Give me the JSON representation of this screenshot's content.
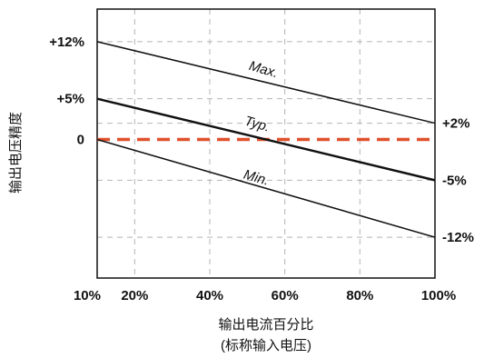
{
  "chart_data": {
    "type": "line",
    "title": "",
    "xlabel": "输出电流百分比",
    "xlabel_sub": "(标称输入电压)",
    "ylabel": "输出电压精度",
    "x_ticks": [
      "10%",
      "20%",
      "40%",
      "60%",
      "80%",
      "100%"
    ],
    "x_tick_values": [
      10,
      20,
      40,
      60,
      80,
      100
    ],
    "xlim": [
      10,
      100
    ],
    "ylim": [
      -17,
      16
    ],
    "grid": true,
    "left_ticks": [
      {
        "label": "+12%",
        "value": 12
      },
      {
        "label": "+5%",
        "value": 5
      },
      {
        "label": "0",
        "value": 0
      }
    ],
    "right_ticks": [
      {
        "label": "+2%",
        "value": 2
      },
      {
        "label": "-5%",
        "value": -5
      },
      {
        "label": "-12%",
        "value": -12
      }
    ],
    "series": [
      {
        "name": "Max.",
        "x": [
          10,
          100
        ],
        "y": [
          12,
          2
        ],
        "color": "#111111"
      },
      {
        "name": "Typ.",
        "x": [
          10,
          100
        ],
        "y": [
          5,
          -5
        ],
        "color": "#111111"
      },
      {
        "name": "Min.",
        "x": [
          10,
          100
        ],
        "y": [
          0,
          -12
        ],
        "color": "#111111"
      }
    ],
    "reference_line": {
      "y": 0,
      "color": "#e0502a",
      "style": "dashed"
    }
  }
}
